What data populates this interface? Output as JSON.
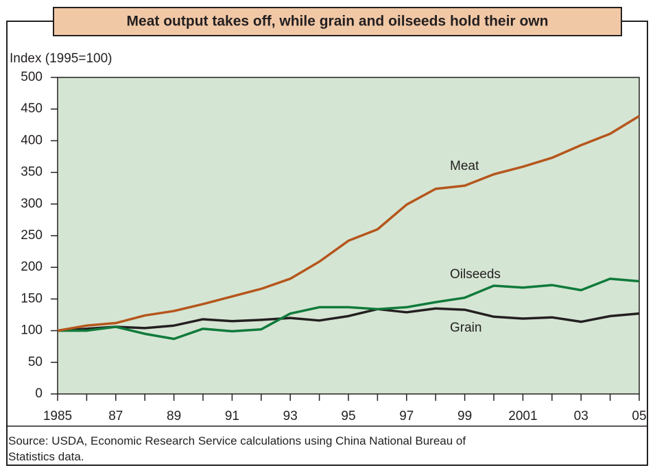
{
  "chart_data": {
    "type": "line",
    "title": "Meat output takes off, while grain and oilseeds hold their own",
    "y_label": "Index (1995=100)",
    "source": "Source:  USDA, Economic Research Service calculations using China National Bureau of Statistics data.",
    "x": [
      1985,
      1986,
      1987,
      1988,
      1989,
      1990,
      1991,
      1992,
      1993,
      1994,
      1995,
      1996,
      1997,
      1998,
      1999,
      2000,
      2001,
      2002,
      2003,
      2004,
      2005
    ],
    "series": [
      {
        "name": "Meat",
        "color": "#b5561c",
        "values": [
          100,
          108,
          112,
          124,
          131,
          142,
          154,
          166,
          182,
          209,
          242,
          260,
          299,
          324,
          329,
          347,
          359,
          373,
          393,
          411,
          439
        ]
      },
      {
        "name": "Oilseeds",
        "color": "#0f7a3a",
        "values": [
          100,
          100,
          106,
          95,
          87,
          103,
          99,
          102,
          127,
          137,
          137,
          134,
          137,
          145,
          152,
          171,
          168,
          172,
          164,
          182,
          178
        ]
      },
      {
        "name": "Grain",
        "color": "#231f20",
        "values": [
          100,
          103,
          106,
          104,
          108,
          118,
          115,
          117,
          120,
          116,
          123,
          134,
          129,
          135,
          133,
          122,
          119,
          121,
          114,
          123,
          127
        ]
      }
    ],
    "xlim": [
      1985,
      2005
    ],
    "xticks": [
      1985,
      {
        "value": 1987,
        "label": "87"
      },
      {
        "value": 1989,
        "label": "89"
      },
      {
        "value": 1991,
        "label": "91"
      },
      {
        "value": 1993,
        "label": "93"
      },
      {
        "value": 1995,
        "label": "95"
      },
      {
        "value": 1997,
        "label": "97"
      },
      {
        "value": 1999,
        "label": "99"
      },
      2001,
      {
        "value": 2003,
        "label": "03"
      },
      {
        "value": 2005,
        "label": "05"
      }
    ],
    "xminorticks": [
      1986,
      1988,
      1990,
      1992,
      1994,
      1996,
      1998,
      2000,
      2002,
      2004
    ],
    "ylim": [
      0,
      500
    ],
    "yticks": [
      0,
      50,
      100,
      150,
      200,
      250,
      300,
      350,
      400,
      450,
      500
    ],
    "plot_background": "#d5e5d3"
  }
}
